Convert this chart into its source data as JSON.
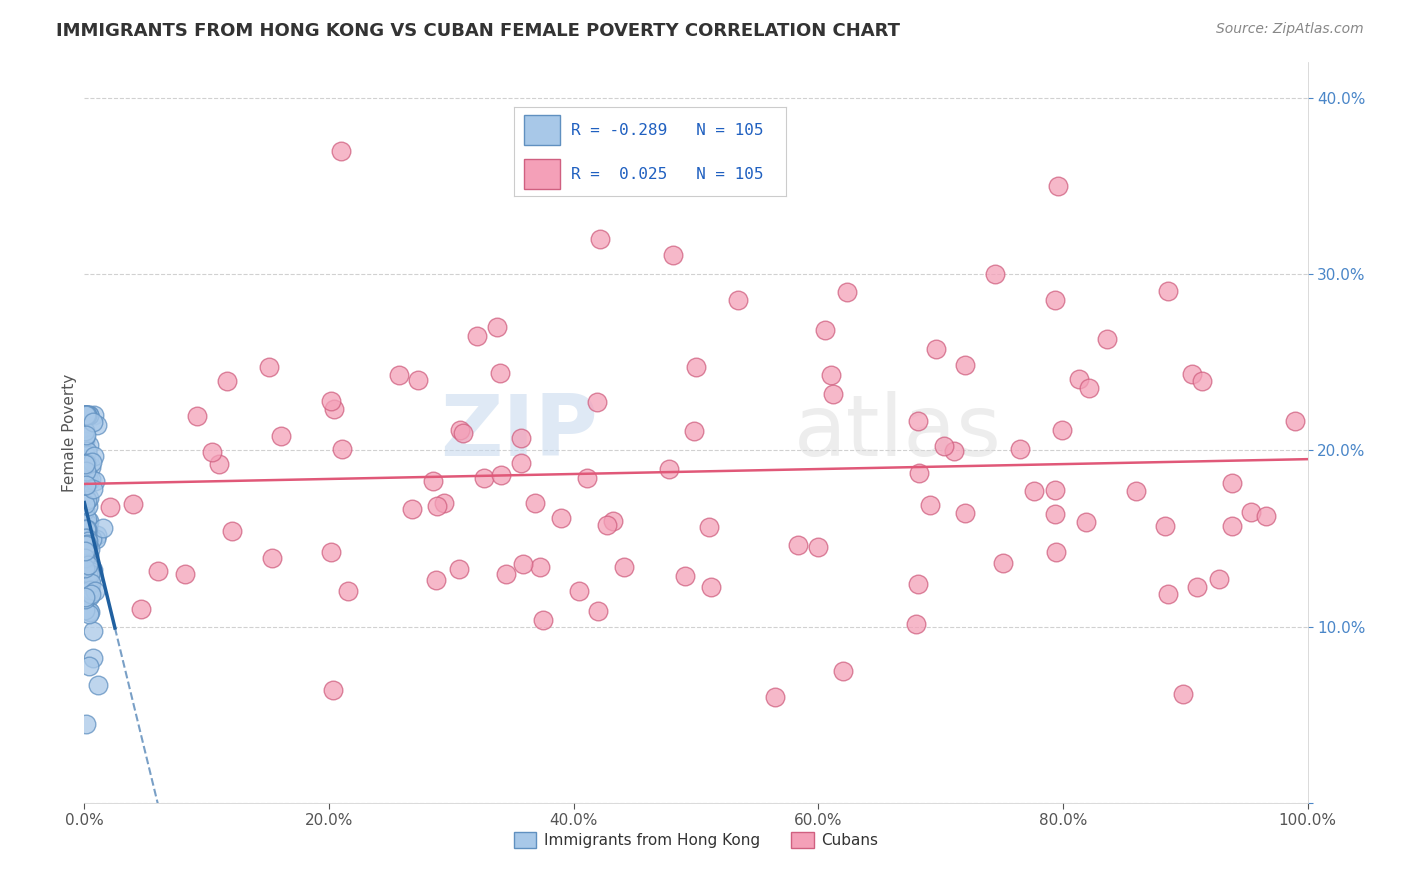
{
  "title": "IMMIGRANTS FROM HONG KONG VS CUBAN FEMALE POVERTY CORRELATION CHART",
  "source": "Source: ZipAtlas.com",
  "ylabel": "Female Poverty",
  "xlim": [
    0,
    1.0
  ],
  "ylim": [
    0,
    0.42
  ],
  "xticks": [
    0.0,
    0.2,
    0.4,
    0.6,
    0.8,
    1.0
  ],
  "xticklabels": [
    "0.0%",
    "20.0%",
    "40.0%",
    "60.0%",
    "80.0%",
    "100.0%"
  ],
  "yticks": [
    0.0,
    0.1,
    0.2,
    0.3,
    0.4
  ],
  "yticklabels": [
    "",
    "10.0%",
    "20.0%",
    "30.0%",
    "40.0%"
  ],
  "series1_name": "Immigrants from Hong Kong",
  "series2_name": "Cubans",
  "series1_color": "#a8c8e8",
  "series2_color": "#f4a0b8",
  "series1_edge": "#6090c0",
  "series2_edge": "#d06080",
  "line1_color": "#2060a0",
  "line2_color": "#e05878",
  "watermark_zip": "ZIP",
  "watermark_atlas": "atlas",
  "background_color": "#ffffff",
  "legend_box_color": "#f8f8ff",
  "legend_border_color": "#cccccc"
}
